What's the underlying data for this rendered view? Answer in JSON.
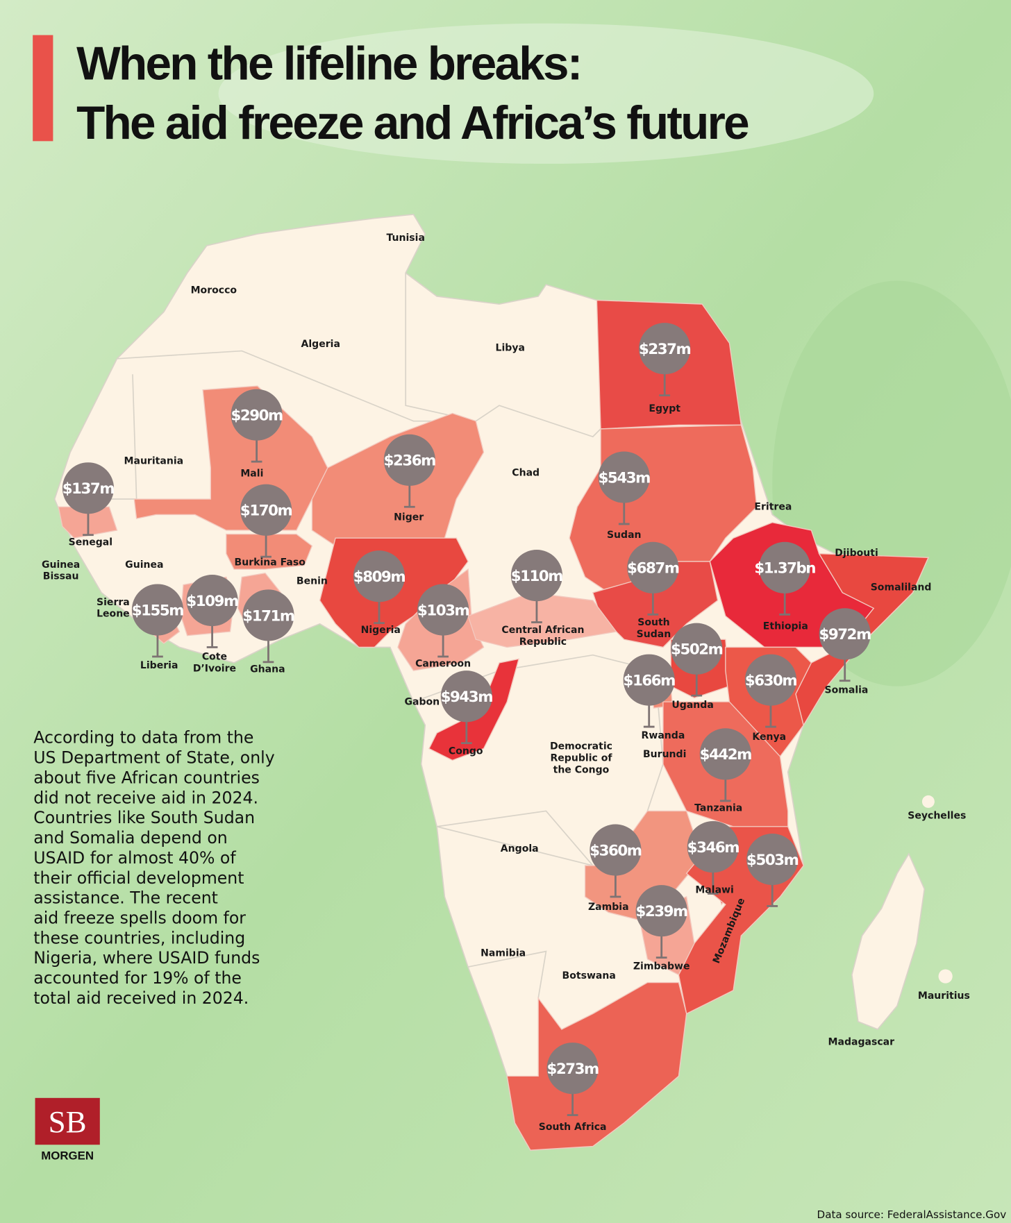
{
  "header": {
    "title_lines": [
      "When the lifeline breaks:",
      "The aid freeze and Africa’s future"
    ]
  },
  "countries": [
    {
      "name": "Egypt",
      "aid": "$237m",
      "color": "#e84b47"
    },
    {
      "name": "Mali",
      "aid": "$290m",
      "color": "#f28c77"
    },
    {
      "name": "Niger",
      "aid": "$236m",
      "color": "#f28c77"
    },
    {
      "name": "Senegal",
      "aid": "$137m",
      "color": "#f5a595"
    },
    {
      "name": "Burkina Faso",
      "aid": "$170m",
      "color": "#f28c77"
    },
    {
      "name": "Sudan",
      "aid": "$543m",
      "color": "#ee6b5c"
    },
    {
      "name": [
        "South",
        "Sudan"
      ],
      "aid": "$687m",
      "color": "#e84b47"
    },
    {
      "name": "Ethiopia",
      "aid": "$1.37bn",
      "color": "#e8293a"
    },
    {
      "name": "Nigeria",
      "aid": "$809m",
      "color": "#e84840"
    },
    {
      "name": "Cameroon",
      "aid": "$103m",
      "color": "#f5a595"
    },
    {
      "name": [
        "Central African",
        "Republic"
      ],
      "aid": "$110m",
      "color": "#f7b3a4"
    },
    {
      "name": "Somalia",
      "aid": "$972m",
      "color": "#e84840"
    },
    {
      "name": "Uganda",
      "aid": "$502m",
      "color": "#e84840"
    },
    {
      "name": "Kenya",
      "aid": "$630m",
      "color": "#ec5849"
    },
    {
      "name": "Rwanda",
      "aid": "$166m",
      "color": "#f28c77"
    },
    {
      "name": "Congo",
      "aid": "$943m",
      "color": "#e8333a"
    },
    {
      "name": "Liberia",
      "aid": "$155m",
      "color": "#f5a595"
    },
    {
      "name": [
        "Cote",
        "D’Ivoire"
      ],
      "aid": "$109m",
      "color": "#f5a595"
    },
    {
      "name": "Ghana",
      "aid": "$171m",
      "color": "#f5a595"
    },
    {
      "name": "Tanzania",
      "aid": "$442m",
      "color": "#ee6b5c"
    },
    {
      "name": "Zambia",
      "aid": "$360m",
      "color": "#f2957f"
    },
    {
      "name": "Malawi",
      "aid": "$346m",
      "color": "#e84b47"
    },
    {
      "name": "Mozambique",
      "aid": "$503m",
      "color": "#ea5449"
    },
    {
      "name": "Zimbabwe",
      "aid": "$239m",
      "color": "#f5a595"
    },
    {
      "name": "South Africa",
      "aid": "$273m",
      "color": "#ec6355"
    }
  ],
  "labels": [
    [
      "Tunisia"
    ],
    [
      "Morocco"
    ],
    [
      "Algeria"
    ],
    [
      "Libya"
    ],
    [
      "Mauritania"
    ],
    [
      "Chad"
    ],
    [
      "Eritrea"
    ],
    [
      "Djibouti"
    ],
    [
      "Somaliland"
    ],
    [
      "Guinea"
    ],
    [
      "Guinea",
      "Bissau"
    ],
    [
      "Sierra",
      "Leone"
    ],
    [
      "Benin"
    ],
    [
      "Gabon"
    ],
    [
      "Democratic",
      "Republic of",
      "the Congo"
    ],
    [
      "Burundi"
    ],
    [
      "Seychelles"
    ],
    [
      "Angola"
    ],
    [
      "Namibia"
    ],
    [
      "Botswana"
    ],
    [
      "Mauritius"
    ],
    [
      "Madagascar"
    ]
  ],
  "text": {
    "lines": [
      "According to data from the",
      "US Department of State, only",
      "about five African countries",
      "did not receive aid in 2024.",
      "Countries like South Sudan",
      "and Somalia depend on",
      "USAID for almost 40% of",
      "their official development",
      "assistance. The recent",
      "aid freeze spells doom for",
      "these countries, including",
      "Nigeria, where USAID funds",
      "accounted for 19% of the",
      "total aid received in 2024."
    ]
  },
  "logo": {
    "mark": "SB",
    "name": "MORGEN"
  },
  "footer": {
    "source": "Data source: FederalAssistance.Gov"
  }
}
